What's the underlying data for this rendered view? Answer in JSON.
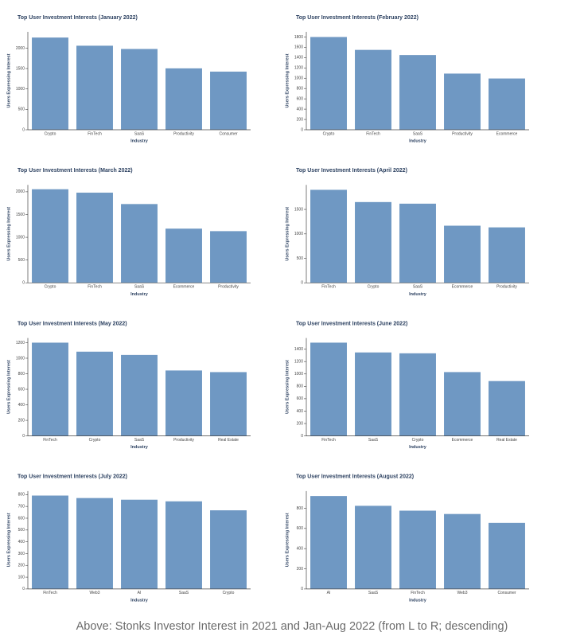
{
  "chart_data": [
    {
      "type": "bar",
      "title": "Top User Investment Interests (January 2022)",
      "x_label": "Industry",
      "y_label": "Users Expressing Interest",
      "categories": [
        "Crypto",
        "FinTech",
        "SaaS",
        "Productivity",
        "Consumer"
      ],
      "values": [
        2260,
        2060,
        1980,
        1505,
        1425
      ],
      "color": "#6f98c3",
      "ylim": [
        0,
        2400
      ],
      "yticks": [
        0,
        500,
        1000,
        1500,
        2000
      ]
    },
    {
      "type": "bar",
      "title": "Top User Investment Interests (February 2022)",
      "x_label": "Industry",
      "y_label": "Users Expressing Interest",
      "categories": [
        "Crypto",
        "FinTech",
        "SaaS",
        "Productivity",
        "Ecommerce"
      ],
      "values": [
        1800,
        1550,
        1450,
        1090,
        995
      ],
      "color": "#6f98c3",
      "ylim": [
        0,
        1900
      ],
      "yticks": [
        0,
        200,
        400,
        600,
        800,
        1000,
        1200,
        1400,
        1600,
        1800
      ]
    },
    {
      "type": "bar",
      "title": "Top User Investment Interests (March 2022)",
      "x_label": "Industry",
      "y_label": "Users Expressing Interest",
      "categories": [
        "Crypto",
        "FinTech",
        "SaaS",
        "Ecommerce",
        "Productivity"
      ],
      "values": [
        2055,
        1980,
        1730,
        1190,
        1135
      ],
      "color": "#6f98c3",
      "ylim": [
        0,
        2150
      ],
      "yticks": [
        0,
        500,
        1000,
        1500,
        2000
      ]
    },
    {
      "type": "bar",
      "title": "Top User Investment Interests (April 2022)",
      "x_label": "Industry",
      "y_label": "Users Expressing Interest",
      "categories": [
        "FinTech",
        "Crypto",
        "SaaS",
        "Ecommerce",
        "Productivity"
      ],
      "values": [
        1900,
        1650,
        1617,
        1167,
        1133
      ],
      "color": "#6f98c3",
      "ylim": [
        0,
        2000
      ],
      "yticks": [
        0,
        500,
        1000,
        1500
      ]
    },
    {
      "type": "bar",
      "title": "Top User Investment Interests (May 2022)",
      "x_label": "Industry",
      "y_label": "Users Expressing Interest",
      "categories": [
        "FinTech",
        "Crypto",
        "SaaS",
        "Productivity",
        "Real Estate"
      ],
      "values": [
        1200,
        1084,
        1042,
        842,
        821
      ],
      "color": "#6f98c3",
      "ylim": [
        0,
        1260
      ],
      "yticks": [
        0,
        200,
        400,
        600,
        800,
        1000,
        1200
      ]
    },
    {
      "type": "bar",
      "title": "Top User Investment Interests (June 2022)",
      "x_label": "Industry",
      "y_label": "Users Expressing Interest",
      "categories": [
        "FinTech",
        "SaaS",
        "Crypto",
        "Ecommerce",
        "Real Estate"
      ],
      "values": [
        1505,
        1347,
        1333,
        1030,
        885
      ],
      "color": "#6f98c3",
      "ylim": [
        0,
        1580
      ],
      "yticks": [
        0,
        200,
        400,
        600,
        800,
        1000,
        1200,
        1400
      ]
    },
    {
      "type": "bar",
      "title": "Top User Investment Interests (July 2022)",
      "x_label": "Industry",
      "y_label": "Users Expressing Interest",
      "categories": [
        "FinTech",
        "Web3",
        "AI",
        "SaaS",
        "Crypto"
      ],
      "values": [
        792,
        771,
        757,
        743,
        667
      ],
      "color": "#6f98c3",
      "ylim": [
        0,
        830
      ],
      "yticks": [
        0,
        100,
        200,
        300,
        400,
        500,
        600,
        700,
        800
      ]
    },
    {
      "type": "bar",
      "title": "Top User Investment Interests (August 2022)",
      "x_label": "Industry",
      "y_label": "Users Expressing Interest",
      "categories": [
        "AI",
        "SaaS",
        "FinTech",
        "Web3",
        "Consumer"
      ],
      "values": [
        921,
        824,
        776,
        743,
        655
      ],
      "color": "#6f98c3",
      "ylim": [
        0,
        970
      ],
      "yticks": [
        0,
        200,
        400,
        600,
        800
      ]
    }
  ],
  "caption": "Above: Stonks Investor Interest in 2021 and Jan-Aug 2022 (from L to R; descending)"
}
